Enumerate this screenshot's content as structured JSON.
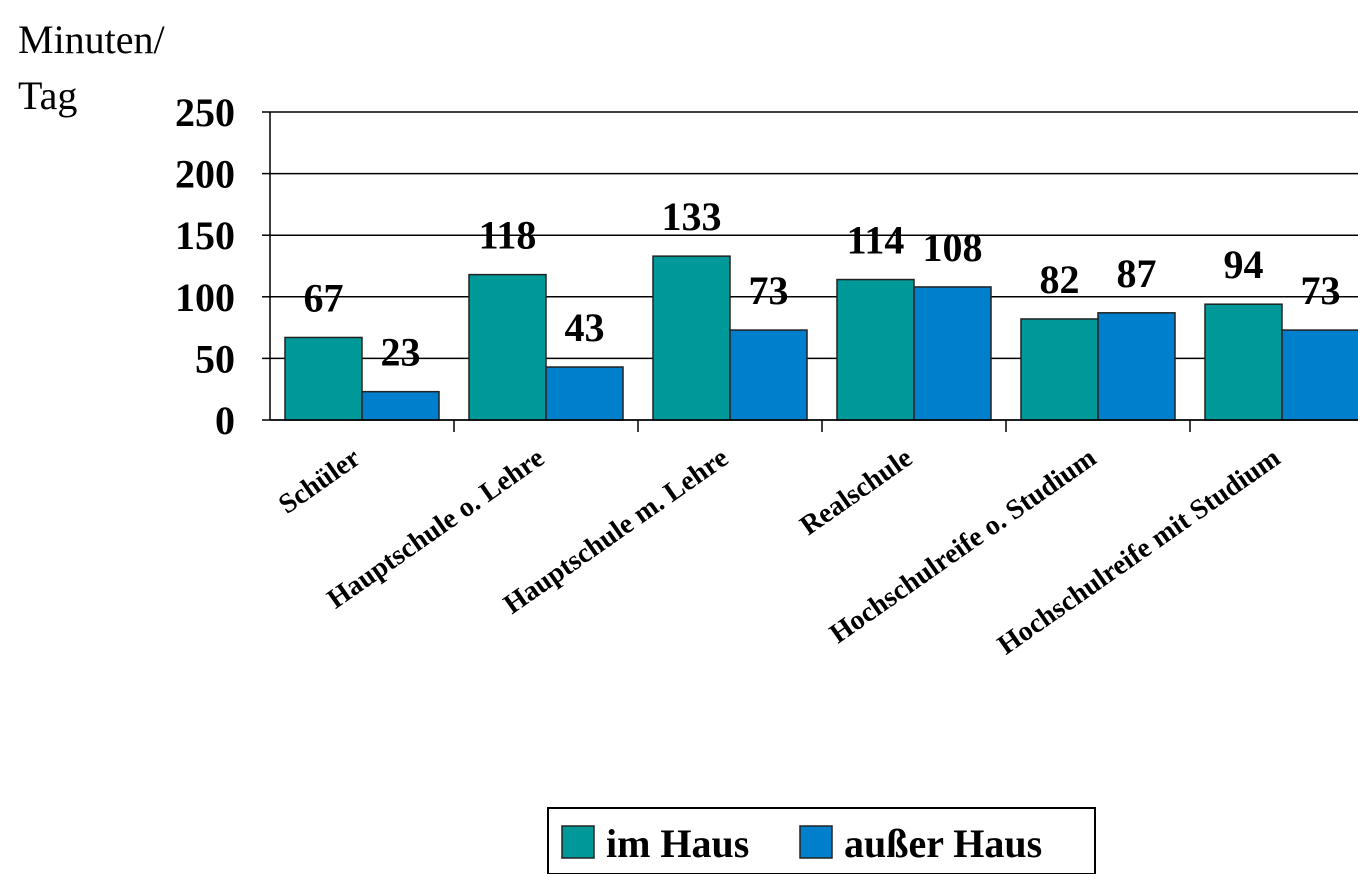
{
  "chart_data": {
    "type": "bar",
    "y_label": "Minuten/ Tag",
    "categories": [
      "Schüler",
      "Hauptschule o. Lehre",
      "Hauptschule m. Lehre",
      "Realschule",
      "Hochschulreife o. Studium",
      "Hochschulreife mit Studium"
    ],
    "series": [
      {
        "name": "im Haus",
        "color": "#009999",
        "values": [
          67,
          118,
          133,
          114,
          82,
          94
        ]
      },
      {
        "name": "außer Haus",
        "color": "#0080cc",
        "values": [
          23,
          43,
          73,
          108,
          87,
          73
        ]
      }
    ],
    "ylim": [
      0,
      250
    ],
    "yticks": [
      0,
      50,
      100,
      150,
      200,
      250
    ],
    "grid": true,
    "legend": "bottom"
  }
}
